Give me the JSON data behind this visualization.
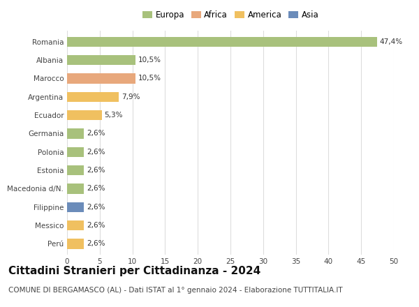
{
  "categories": [
    "Romania",
    "Albania",
    "Marocco",
    "Argentina",
    "Ecuador",
    "Germania",
    "Polonia",
    "Estonia",
    "Macedonia d/N.",
    "Filippine",
    "Messico",
    "Perú"
  ],
  "values": [
    47.4,
    10.5,
    10.5,
    7.9,
    5.3,
    2.6,
    2.6,
    2.6,
    2.6,
    2.6,
    2.6,
    2.6
  ],
  "labels": [
    "47,4%",
    "10,5%",
    "10,5%",
    "7,9%",
    "5,3%",
    "2,6%",
    "2,6%",
    "2,6%",
    "2,6%",
    "2,6%",
    "2,6%",
    "2,6%"
  ],
  "colors": [
    "#a8c17c",
    "#a8c17c",
    "#e8a87c",
    "#f0c060",
    "#f0c060",
    "#a8c17c",
    "#a8c17c",
    "#a8c17c",
    "#a8c17c",
    "#6b8cba",
    "#f0c060",
    "#f0c060"
  ],
  "legend_labels": [
    "Europa",
    "Africa",
    "America",
    "Asia"
  ],
  "legend_colors": [
    "#a8c17c",
    "#e8a87c",
    "#f0c060",
    "#6b8cba"
  ],
  "title": "Cittadini Stranieri per Cittadinanza - 2024",
  "subtitle": "COMUNE DI BERGAMASCO (AL) - Dati ISTAT al 1° gennaio 2024 - Elaborazione TUTTITALIA.IT",
  "xlim": [
    0,
    50
  ],
  "xticks": [
    0,
    5,
    10,
    15,
    20,
    25,
    30,
    35,
    40,
    45,
    50
  ],
  "background_color": "#ffffff",
  "grid_color": "#dddddd",
  "bar_height": 0.55,
  "title_fontsize": 11,
  "subtitle_fontsize": 7.5,
  "label_fontsize": 7.5,
  "tick_fontsize": 7.5,
  "legend_fontsize": 8.5
}
